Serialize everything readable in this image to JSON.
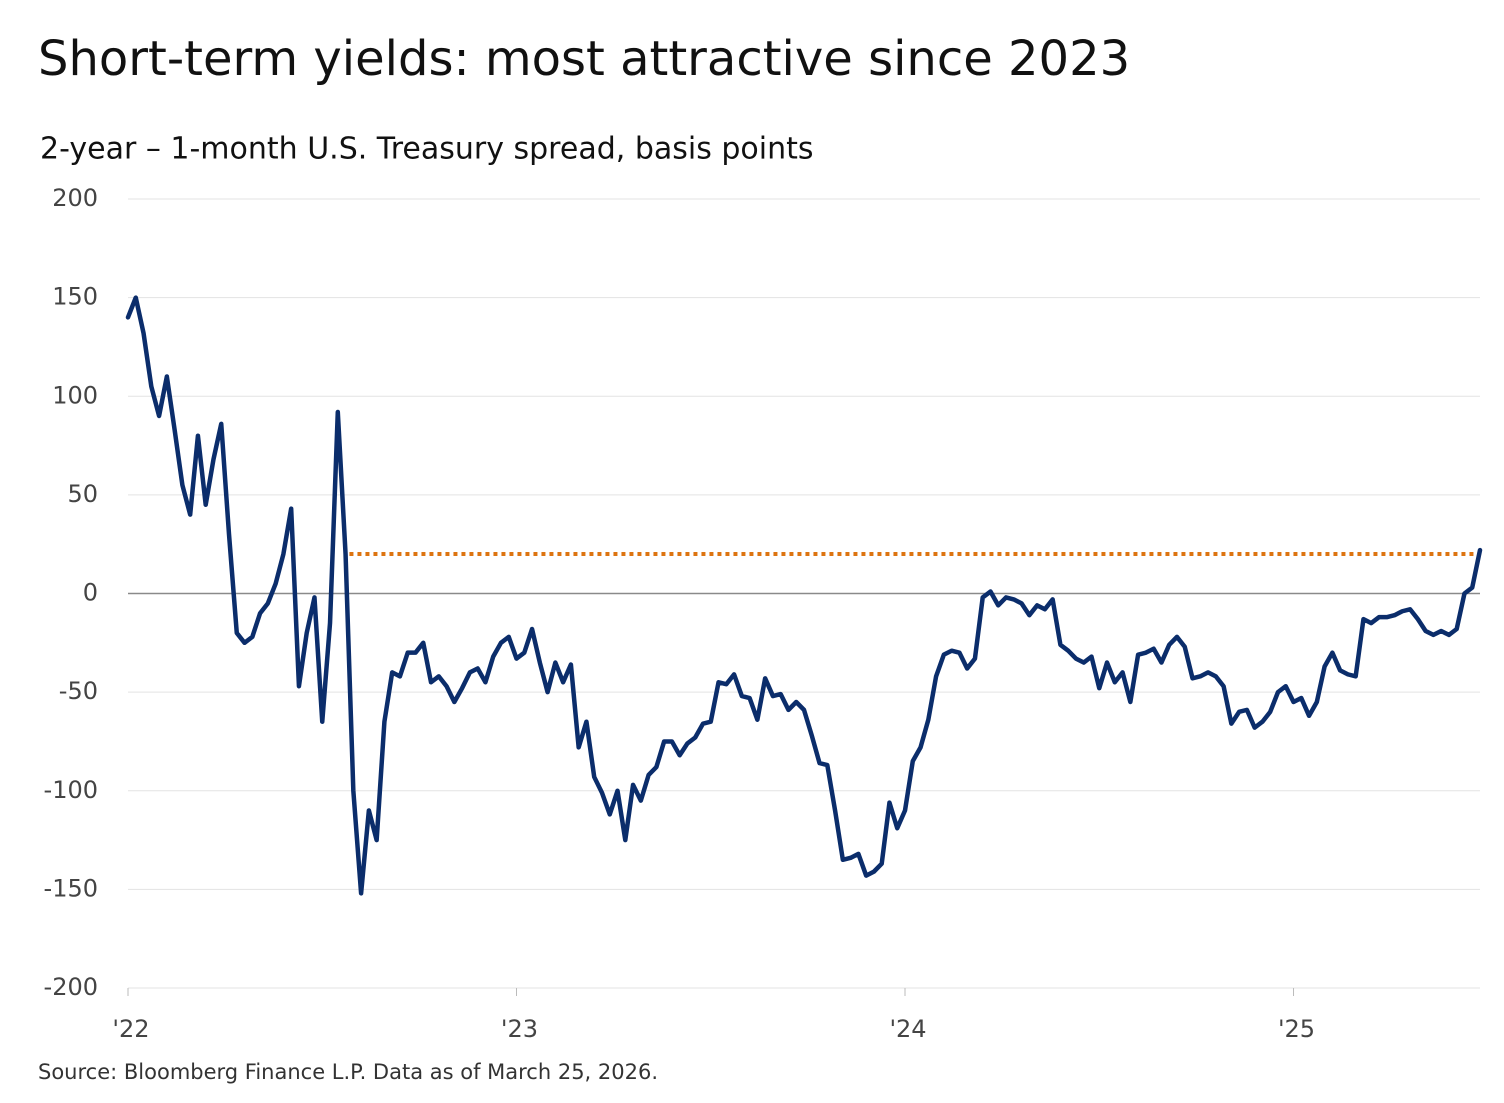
{
  "chart_data": {
    "type": "line",
    "title": "Short-term yields: most attractive since 2023",
    "subtitle": "2-year – 1-month U.S. Treasury spread, basis points",
    "source": "Source: Bloomberg Finance L.P. Data as of March 25, 2026.",
    "xlim": [
      2022,
      2025.48
    ],
    "xticks": [
      {
        "value": 2022,
        "label": "'22"
      },
      {
        "value": 2023,
        "label": "'23"
      },
      {
        "value": 2024,
        "label": "'24"
      },
      {
        "value": 2025,
        "label": "'25"
      }
    ],
    "ylim": [
      -200,
      200
    ],
    "yticks": [
      200,
      150,
      100,
      50,
      0,
      -50,
      -100,
      -150,
      -200
    ],
    "grid": true,
    "x": [
      2022,
      2022.02,
      2022.04,
      2022.06,
      2022.08,
      2022.1,
      2022.12,
      2022.14,
      2022.16,
      2022.18,
      2022.2,
      2022.22,
      2022.24,
      2022.26,
      2022.28,
      2022.3,
      2022.32,
      2022.34,
      2022.36,
      2022.38,
      2022.4,
      2022.42,
      2022.44,
      2022.46,
      2022.48,
      2022.5,
      2022.52,
      2022.54,
      2022.56,
      2022.58,
      2022.6,
      2022.62,
      2022.64,
      2022.66,
      2022.68,
      2022.7,
      2022.72,
      2022.74,
      2022.76,
      2022.78,
      2022.8,
      2022.82,
      2022.84,
      2022.86,
      2022.88,
      2022.9,
      2022.92,
      2022.94,
      2022.96,
      2022.98,
      2023,
      2023.02,
      2023.04,
      2023.06,
      2023.08,
      2023.1,
      2023.12,
      2023.14,
      2023.16,
      2023.18,
      2023.2,
      2023.22,
      2023.24,
      2023.26,
      2023.28,
      2023.3,
      2023.32,
      2023.34,
      2023.36,
      2023.38,
      2023.4,
      2023.42,
      2023.44,
      2023.46,
      2023.48,
      2023.5,
      2023.52,
      2023.54,
      2023.56,
      2023.58,
      2023.6,
      2023.62,
      2023.64,
      2023.66,
      2023.68,
      2023.7,
      2023.72,
      2023.74,
      2023.76,
      2023.78,
      2023.8,
      2023.82,
      2023.84,
      2023.86,
      2023.88,
      2023.9,
      2023.92,
      2023.94,
      2023.96,
      2023.98,
      2024,
      2024.02,
      2024.04,
      2024.06,
      2024.08,
      2024.1,
      2024.12,
      2024.14,
      2024.16,
      2024.18,
      2024.2,
      2024.22,
      2024.24,
      2024.26,
      2024.28,
      2024.3,
      2024.32,
      2024.34,
      2024.36,
      2024.38,
      2024.4,
      2024.42,
      2024.44,
      2024.46,
      2024.48,
      2024.5,
      2024.52,
      2024.54,
      2024.56,
      2024.58,
      2024.6,
      2024.62,
      2024.64,
      2024.66,
      2024.68,
      2024.7,
      2024.72,
      2024.74,
      2024.76,
      2024.78,
      2024.8,
      2024.82,
      2024.84,
      2024.86,
      2024.88,
      2024.9,
      2024.92,
      2024.94,
      2024.96,
      2024.98,
      2025,
      2025.02,
      2025.04,
      2025.06,
      2025.08,
      2025.1,
      2025.12,
      2025.14,
      2025.16,
      2025.18,
      2025.2,
      2025.22,
      2025.24,
      2025.26,
      2025.28,
      2025.3,
      2025.32,
      2025.34,
      2025.36,
      2025.38,
      2025.4,
      2025.42,
      2025.44,
      2025.46,
      2025.48
    ],
    "series": [
      {
        "color": "#0b2d6b",
        "values": [
          140,
          150,
          132,
          105,
          90,
          110,
          83,
          55,
          40,
          80,
          45,
          68,
          86,
          30,
          -20,
          -25,
          -22,
          -10,
          -5,
          5,
          20,
          43,
          -47,
          -20,
          -2,
          -65,
          -15,
          92,
          20,
          -100,
          -152,
          -110,
          -125,
          -65,
          -40,
          -42,
          -30,
          -30,
          -25,
          -45,
          -42,
          -47,
          -55,
          -48,
          -40,
          -38,
          -45,
          -32,
          -25,
          -22,
          -33,
          -30,
          -18,
          -35,
          -50,
          -35,
          -45,
          -36,
          -78,
          -65,
          -93,
          -101,
          -112,
          -100,
          -125,
          -97,
          -105,
          -92,
          -88,
          -75,
          -75,
          -82,
          -76,
          -73,
          -66,
          -65,
          -45,
          -46,
          -41,
          -52,
          -53,
          -64,
          -43,
          -52,
          -51,
          -59,
          -55,
          -59,
          -72,
          -86,
          -87,
          -110,
          -135,
          -134,
          -132,
          -143,
          -141,
          -137,
          -106,
          -119,
          -110,
          -85,
          -78,
          -64,
          -42,
          -31,
          -29,
          -30,
          -38,
          -33,
          -2,
          1,
          -6,
          -2,
          -3,
          -5,
          -11,
          -6,
          -8,
          -3,
          -26,
          -29,
          -33,
          -35,
          -32,
          -48,
          -35,
          -45,
          -40,
          -55,
          -31,
          -30,
          -28,
          -35,
          -26,
          -22,
          -27,
          -43,
          -42,
          -40,
          -42,
          -47,
          -66,
          -60,
          -59,
          -68,
          -65,
          -60,
          -50,
          -47,
          -55,
          -53,
          -62,
          -55,
          -37,
          -30,
          -39,
          -41,
          -42,
          -13,
          -15,
          -12,
          -12,
          -11,
          -9,
          -8,
          -13,
          -19,
          -21,
          -19,
          -21,
          -18,
          0,
          3,
          22
        ]
      }
    ],
    "reference_line": {
      "x": [
        2022.57,
        2025.48
      ],
      "values": [
        20,
        20
      ],
      "color": "#dd7410",
      "style": "dotted"
    }
  }
}
